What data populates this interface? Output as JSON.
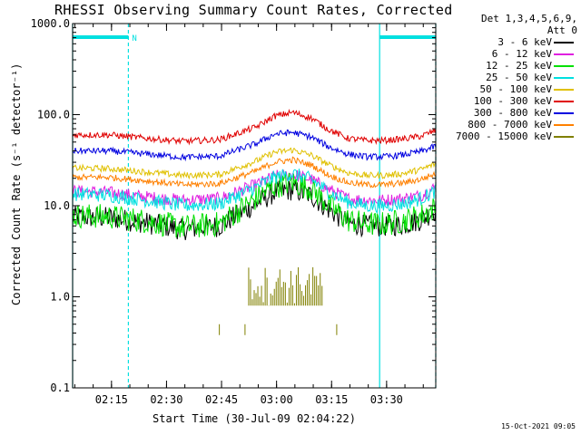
{
  "chart_data": {
    "type": "line",
    "title": "RHESSI Observing Summary Count Rates, Corrected",
    "ylabel": "Corrected Count Rate (s⁻¹ detector⁻¹)",
    "xlabel": "Start Time (30-Jul-09 02:04:22)",
    "y_scale": "log",
    "ylim": [
      0.1,
      1000
    ],
    "y_ticks": [
      {
        "value": 0.1,
        "label": "0.1"
      },
      {
        "value": 1,
        "label": "1.0"
      },
      {
        "value": 10,
        "label": "10.0"
      },
      {
        "value": 100,
        "label": "100.0"
      },
      {
        "value": 1000,
        "label": "1000.0"
      }
    ],
    "xlim_minutes": [
      2.0,
      42.0
    ],
    "x_ticks": [
      {
        "value": 10.6,
        "label": "02:15"
      },
      {
        "value": 25.6,
        "label": "02:30"
      },
      {
        "value": 40.6,
        "label": "02:45"
      },
      {
        "value": 55.6,
        "label": "03:00"
      },
      {
        "value": 70.6,
        "label": "03:15"
      },
      {
        "value": 85.6,
        "label": "03:30"
      }
    ],
    "xlim": [
      0,
      99
    ],
    "night_intervals": [
      [
        0,
        15.2
      ],
      [
        83.7,
        99
      ]
    ],
    "saa_marker": "N",
    "series": [
      {
        "name": "3 - 6 keV",
        "color": "#000000",
        "x": [
          0,
          10,
          20,
          30,
          40,
          50,
          55,
          60,
          65,
          70,
          75,
          80,
          85,
          90,
          95,
          99
        ],
        "y": [
          7.5,
          7.4,
          6.5,
          5.5,
          6.0,
          10.5,
          14.0,
          15.0,
          13.0,
          9.0,
          6.5,
          6.0,
          6.0,
          6.2,
          7.0,
          9.0
        ]
      },
      {
        "name": "6 - 12 keV",
        "color": "#e020e0",
        "x": [
          0,
          10,
          20,
          30,
          40,
          50,
          55,
          60,
          65,
          70,
          75,
          80,
          85,
          90,
          95,
          99
        ],
        "y": [
          14.5,
          14.0,
          12.5,
          11.5,
          12.0,
          17.0,
          21.0,
          22.0,
          19.5,
          15.0,
          12.0,
          11.5,
          11.5,
          12.0,
          13.0,
          16.0
        ]
      },
      {
        "name": "12 - 25 keV",
        "color": "#00e000",
        "x": [
          0,
          10,
          20,
          30,
          40,
          50,
          55,
          60,
          65,
          70,
          75,
          80,
          85,
          90,
          95,
          99
        ],
        "y": [
          7.8,
          7.6,
          6.8,
          5.8,
          6.3,
          12.0,
          16.5,
          18.0,
          15.5,
          10.0,
          7.0,
          6.3,
          6.3,
          6.8,
          7.8,
          9.5
        ]
      },
      {
        "name": "25 - 50 keV",
        "color": "#00e0e0",
        "x": [
          0,
          10,
          20,
          30,
          40,
          50,
          55,
          60,
          65,
          70,
          75,
          80,
          85,
          90,
          95,
          99
        ],
        "y": [
          13.5,
          13.0,
          11.5,
          10.0,
          10.5,
          16.0,
          20.5,
          22.5,
          19.5,
          14.0,
          11.0,
          10.0,
          10.0,
          10.5,
          12.0,
          14.5
        ]
      },
      {
        "name": "50 - 100 keV",
        "color": "#e0c000",
        "x": [
          0,
          10,
          20,
          30,
          40,
          50,
          55,
          60,
          65,
          70,
          75,
          80,
          85,
          90,
          95,
          99
        ],
        "y": [
          26.0,
          25.5,
          23.5,
          21.5,
          22.0,
          31.0,
          38.5,
          41.0,
          36.0,
          28.0,
          23.0,
          21.5,
          21.5,
          22.5,
          25.0,
          29.0
        ]
      },
      {
        "name": "100 - 300 keV",
        "color": "#e00000",
        "x": [
          0,
          10,
          20,
          30,
          40,
          50,
          55,
          60,
          65,
          70,
          75,
          80,
          85,
          90,
          95,
          99
        ],
        "y": [
          60.0,
          60.0,
          55.0,
          51.0,
          53.0,
          73.0,
          96.0,
          106.0,
          92.0,
          68.0,
          55.0,
          52.0,
          52.0,
          54.0,
          58.0,
          67.0
        ]
      },
      {
        "name": "300 - 800 keV",
        "color": "#0000e0",
        "x": [
          0,
          10,
          20,
          30,
          40,
          50,
          55,
          60,
          65,
          70,
          75,
          80,
          85,
          90,
          95,
          99
        ],
        "y": [
          40.0,
          40.0,
          37.0,
          34.0,
          35.0,
          48.0,
          61.0,
          64.0,
          57.0,
          44.0,
          37.0,
          34.5,
          34.5,
          36.0,
          39.5,
          45.0
        ]
      },
      {
        "name": "800 - 7000 keV",
        "color": "#ff8000",
        "x": [
          0,
          10,
          20,
          30,
          40,
          50,
          55,
          60,
          65,
          70,
          75,
          80,
          85,
          90,
          95,
          99
        ],
        "y": [
          20.5,
          20.5,
          18.8,
          17.0,
          17.5,
          24.0,
          30.0,
          32.0,
          28.0,
          21.5,
          18.0,
          17.0,
          17.0,
          17.8,
          19.5,
          22.5
        ]
      },
      {
        "name": "7000 - 15000 keV",
        "color": "#808000",
        "x": [
          48,
          50,
          55,
          60,
          65,
          68
        ],
        "y": [
          0.8,
          0.8,
          0.8,
          0.8,
          0.8,
          0.8
        ]
      }
    ]
  },
  "legend": {
    "header_line1": "Det 1,3,4,5,6,9,",
    "header_line2": "Att 0"
  },
  "footer_date": "15-Oct-2021 09:05"
}
